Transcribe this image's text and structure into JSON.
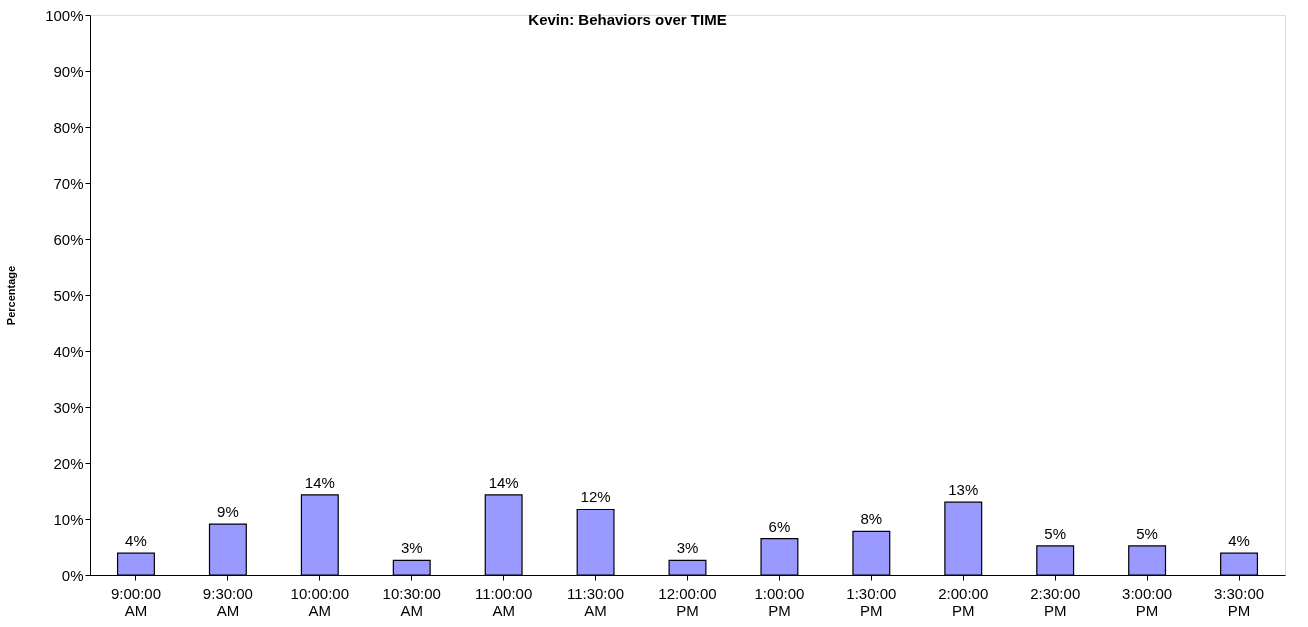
{
  "chart_data": {
    "type": "bar",
    "title": "Kevin: Behaviors over TIME",
    "ylabel": "Percentage",
    "categories": [
      "9:00:00 AM",
      "9:30:00 AM",
      "10:00:00 AM",
      "10:30:00 AM",
      "11:00:00 AM",
      "11:30:00 AM",
      "12:00:00 PM",
      "1:00:00 PM",
      "1:30:00 PM",
      "2:00:00 PM",
      "2:30:00 PM",
      "3:00:00 PM",
      "3:30:00 PM"
    ],
    "values": [
      3.9,
      9.1,
      14.3,
      2.6,
      14.3,
      11.7,
      2.6,
      6.5,
      7.8,
      13.0,
      5.2,
      5.2,
      3.9
    ],
    "value_labels": [
      "4%",
      "9%",
      "14%",
      "3%",
      "14%",
      "12%",
      "3%",
      "6%",
      "8%",
      "13%",
      "5%",
      "5%",
      "4%"
    ],
    "color": "#9999ff",
    "ylim": [
      0,
      100
    ],
    "yticks": [
      {
        "value": 0,
        "label": "0%"
      },
      {
        "value": 10,
        "label": "10%"
      },
      {
        "value": 20,
        "label": "20%"
      },
      {
        "value": 30,
        "label": "30%"
      },
      {
        "value": 40,
        "label": "40%"
      },
      {
        "value": 50,
        "label": "50%"
      },
      {
        "value": 60,
        "label": "60%"
      },
      {
        "value": 70,
        "label": "70%"
      },
      {
        "value": 80,
        "label": "80%"
      },
      {
        "value": 90,
        "label": "90%"
      },
      {
        "value": 100,
        "label": "100%"
      }
    ],
    "grid": false
  }
}
